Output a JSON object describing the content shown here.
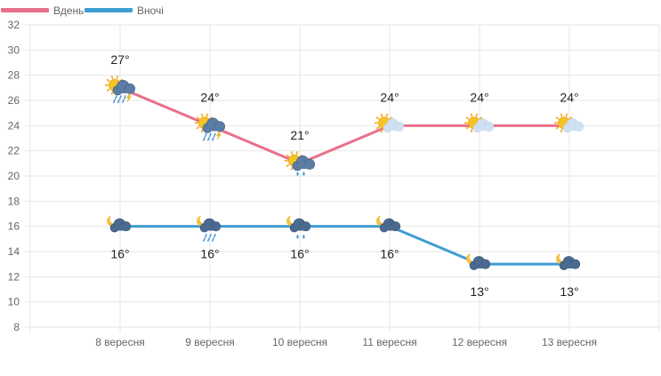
{
  "chart_data": {
    "type": "line",
    "categories": [
      "8 вересня",
      "9 вересня",
      "10 вересня",
      "11 вересня",
      "12 вересня",
      "13 вересня"
    ],
    "series": [
      {
        "name": "Вдень",
        "color": "#e8708a",
        "values": [
          27,
          24,
          21,
          24,
          24,
          24
        ],
        "labels": [
          "27°",
          "24°",
          "21°",
          "24°",
          "24°",
          "24°"
        ],
        "icons": [
          "sun-cloud-rain-thunder-icon",
          "sun-cloud-rain-thunder-icon",
          "sun-cloud-rain-icon",
          "sun-cloud-icon",
          "sun-cloud-icon",
          "sun-cloud-icon"
        ]
      },
      {
        "name": "Вночі",
        "color": "#3e9ed1",
        "values": [
          16,
          16,
          16,
          16,
          13,
          13
        ],
        "labels": [
          "16°",
          "16°",
          "16°",
          "16°",
          "13°",
          "13°"
        ],
        "icons": [
          "moon-cloud-icon",
          "moon-cloud-rain-icon",
          "moon-cloud-rain-icon",
          "moon-cloud-icon",
          "moon-cloud-icon",
          "moon-cloud-icon"
        ]
      }
    ],
    "yticks": [
      "8",
      "10",
      "12",
      "14",
      "16",
      "18",
      "20",
      "22",
      "24",
      "26",
      "28",
      "30",
      "32"
    ],
    "ylim": [
      8,
      32
    ],
    "grid": true,
    "legend": "top-left"
  }
}
